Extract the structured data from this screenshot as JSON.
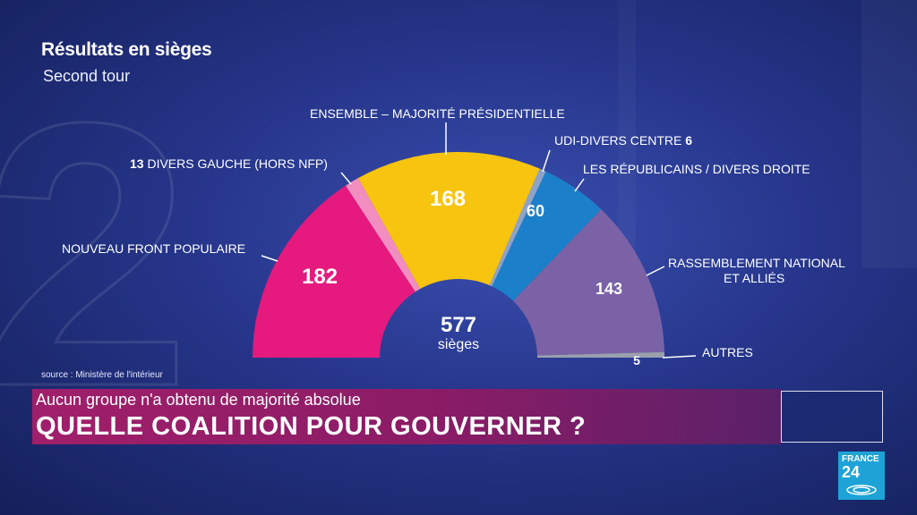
{
  "title": "Résultats en sièges",
  "subtitle": "Second tour",
  "source": "source : Ministère de l'intérieur",
  "center": {
    "value": "577",
    "unit": "sièges"
  },
  "banner": {
    "top_line": "Aucun groupe n'a obtenu de majorité absolue",
    "main_line": "QUELLE COALITION POUR GOUVERNER ?"
  },
  "logo": {
    "line1": "FRANCE",
    "line2": "24"
  },
  "chart_data": {
    "type": "pie",
    "total": 577,
    "slices": [
      {
        "label": "NOUVEAU FRONT POPULAIRE",
        "value": 182,
        "color": "#e5197e"
      },
      {
        "label": "DIVERS GAUCHE (HORS NFP)",
        "value": 13,
        "color": "#f28dc0"
      },
      {
        "label": "ENSEMBLE – MAJORITÉ PRÉSIDENTIELLE",
        "value": 168,
        "color": "#f7c410"
      },
      {
        "label": "UDI-DIVERS CENTRE",
        "value": 6,
        "color": "#8fa3c7"
      },
      {
        "label": "LES RÉPUBLICAINS / DIVERS DROITE",
        "value": 60,
        "color": "#1c7fc9"
      },
      {
        "label": "RASSEMBLEMENT NATIONAL ET ALLIÉS",
        "value": 143,
        "color": "#7b62a6"
      },
      {
        "label": "AUTRES",
        "value": 5,
        "color": "#9aa0ad"
      }
    ]
  }
}
